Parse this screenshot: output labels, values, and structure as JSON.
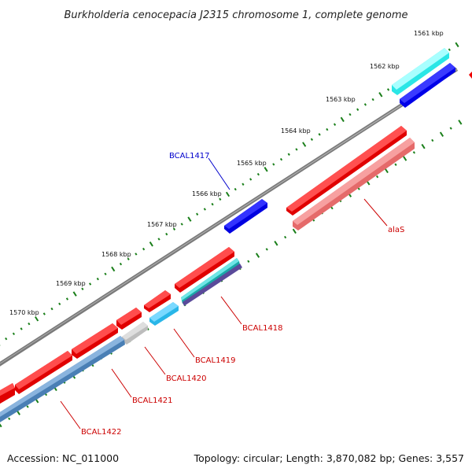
{
  "title": "Burkholderia cenocepacia J2315 chromosome 1, complete genome",
  "footer": {
    "accession": "Accession: NC_011000",
    "summary": "Topology: circular; Length: 3,870,082 bp; Genes: 3,557"
  },
  "kbp_labels": [
    "1561 kbp",
    "1562 kbp",
    "1563 kbp",
    "1564 kbp",
    "1565 kbp",
    "1566 kbp",
    "1567 kbp",
    "1568 kbp",
    "1569 kbp",
    "1570 kbp"
  ],
  "gene_labels": [
    {
      "name": "BCAL1417",
      "color": "#0000cc"
    },
    {
      "name": "alaS",
      "color": "#cc0000"
    },
    {
      "name": "BCAL1418",
      "color": "#cc0000"
    },
    {
      "name": "BCAL1419",
      "color": "#cc0000"
    },
    {
      "name": "BCAL1420",
      "color": "#cc0000"
    },
    {
      "name": "BCAL1421",
      "color": "#cc0000"
    },
    {
      "name": "BCAL1422",
      "color": "#cc0000"
    }
  ],
  "colors": {
    "backbone": "#808080",
    "cds": "#ff0000",
    "gene_forward": "#0000ff",
    "rna": "#00ffff",
    "highlight_pink": "#f08080",
    "steel": "#4a80b8",
    "grey_feature": "#c0c0c0",
    "tick": "#1a7f1a"
  }
}
